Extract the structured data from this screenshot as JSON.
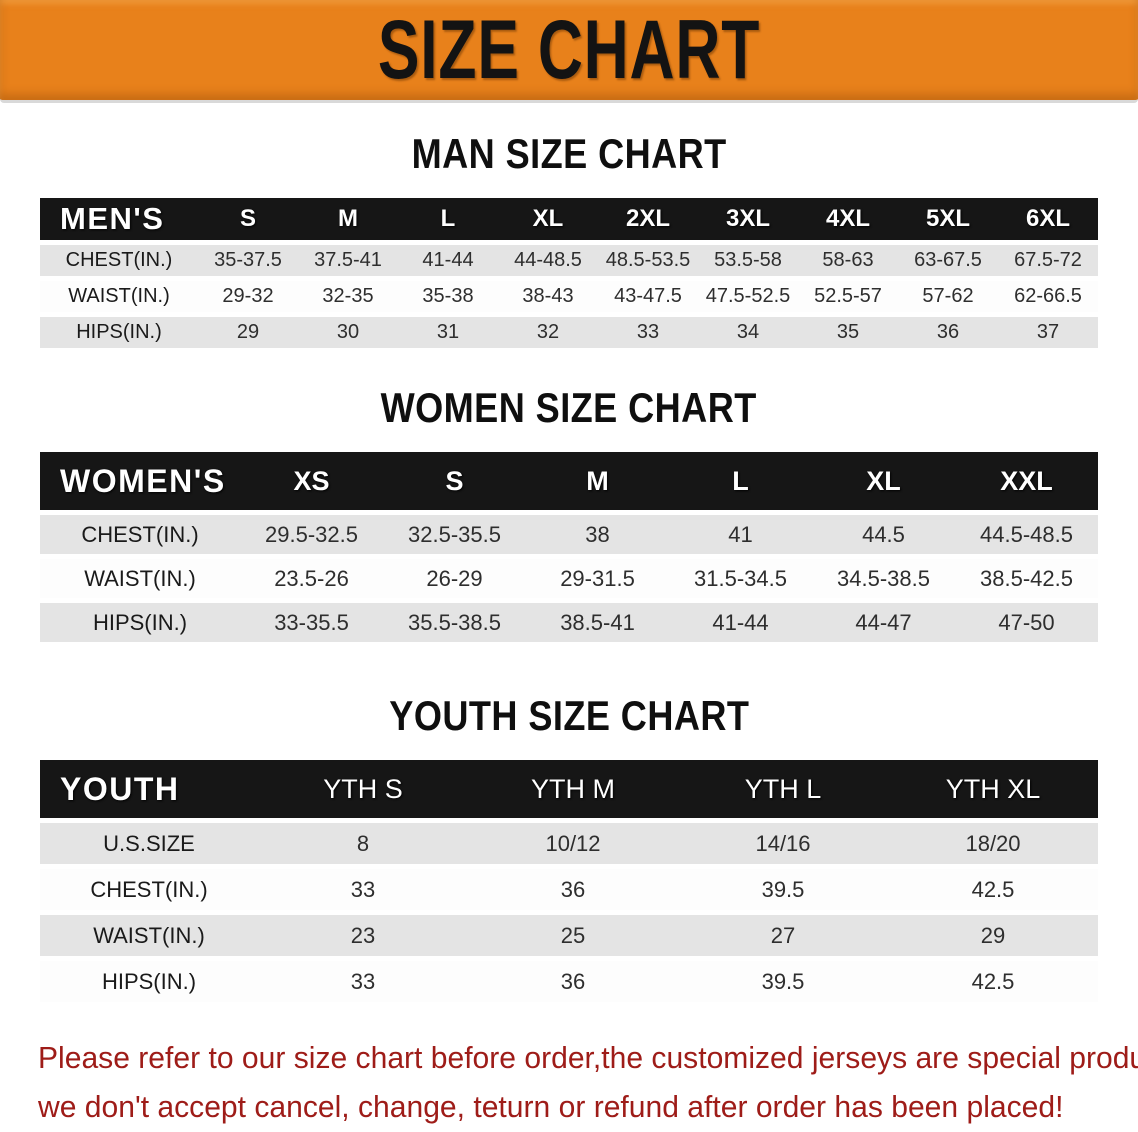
{
  "banner": {
    "title": "SIZE CHART"
  },
  "men": {
    "heading": "MAN SIZE CHART",
    "header": [
      "MEN'S",
      "S",
      "M",
      "L",
      "XL",
      "2XL",
      "3XL",
      "4XL",
      "5XL",
      "6XL"
    ],
    "rows": [
      {
        "label": "CHEST(IN.)",
        "values": [
          "35-37.5",
          "37.5-41",
          "41-44",
          "44-48.5",
          "48.5-53.5",
          "53.5-58",
          "58-63",
          "63-67.5",
          "67.5-72"
        ]
      },
      {
        "label": "WAIST(IN.)",
        "values": [
          "29-32",
          "32-35",
          "35-38",
          "38-43",
          "43-47.5",
          "47.5-52.5",
          "52.5-57",
          "57-62",
          "62-66.5"
        ]
      },
      {
        "label": "HIPS(IN.)",
        "values": [
          "29",
          "30",
          "31",
          "32",
          "33",
          "34",
          "35",
          "36",
          "37"
        ]
      }
    ]
  },
  "women": {
    "heading": "WOMEN SIZE CHART",
    "header": [
      "WOMEN'S",
      "XS",
      "S",
      "M",
      "L",
      "XL",
      "XXL"
    ],
    "rows": [
      {
        "label": "CHEST(IN.)",
        "values": [
          "29.5-32.5",
          "32.5-35.5",
          "38",
          "41",
          "44.5",
          "44.5-48.5"
        ]
      },
      {
        "label": "WAIST(IN.)",
        "values": [
          "23.5-26",
          "26-29",
          "29-31.5",
          "31.5-34.5",
          "34.5-38.5",
          "38.5-42.5"
        ]
      },
      {
        "label": "HIPS(IN.)",
        "values": [
          "33-35.5",
          "35.5-38.5",
          "38.5-41",
          "41-44",
          "44-47",
          "47-50"
        ]
      }
    ]
  },
  "youth": {
    "heading": "YOUTH SIZE CHART",
    "header": [
      "YOUTH",
      "YTH S",
      "YTH M",
      "YTH L",
      "YTH XL"
    ],
    "rows": [
      {
        "label": "U.S.SIZE",
        "values": [
          "8",
          "10/12",
          "14/16",
          "18/20"
        ]
      },
      {
        "label": "CHEST(IN.)",
        "values": [
          "33",
          "36",
          "39.5",
          "42.5"
        ]
      },
      {
        "label": "WAIST(IN.)",
        "values": [
          "23",
          "25",
          "27",
          "29"
        ]
      },
      {
        "label": "HIPS(IN.)",
        "values": [
          "33",
          "36",
          "39.5",
          "42.5"
        ]
      }
    ]
  },
  "disclaimer": {
    "line1": "Please refer to our size chart before order,the customized jerseys are special products,",
    "line2": "we don't accept cancel, change, teturn or refund after order has been placed!"
  },
  "colors": {
    "banner_orange": "#e8811b",
    "header_black": "#161616",
    "row_gray": "#e4e4e4",
    "disclaimer_red": "#9e1c18"
  }
}
